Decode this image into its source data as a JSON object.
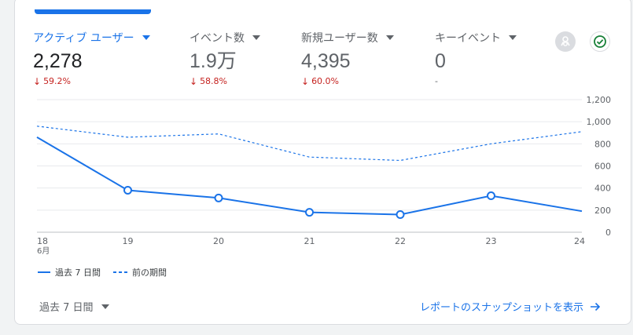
{
  "metrics": [
    {
      "label": "アクティブ ユーザー",
      "value": "2,278",
      "delta": "59.2%",
      "direction": "down"
    },
    {
      "label": "イベント数",
      "value": "1.9万",
      "delta": "58.8%",
      "direction": "down"
    },
    {
      "label": "新規ユーザー数",
      "value": "4,395",
      "delta": "60.0%",
      "direction": "down"
    },
    {
      "label": "キーイベント",
      "value": "0",
      "delta": "-",
      "direction": "none"
    }
  ],
  "icons": {
    "insights": "insights-icon",
    "check": "check-circle-icon"
  },
  "colors": {
    "accent": "#1a73e8",
    "negative": "#c5221f"
  },
  "chart_data": {
    "type": "line",
    "x": [
      "18",
      "19",
      "20",
      "21",
      "22",
      "23",
      "24"
    ],
    "x_sublabel": "6月",
    "yticks": [
      "0",
      "200",
      "400",
      "600",
      "800",
      "1,000",
      "1,200"
    ],
    "ylim": [
      0,
      1200
    ],
    "series": [
      {
        "name": "過去 7 日間",
        "style": "solid",
        "values": [
          860,
          380,
          310,
          180,
          160,
          330,
          190
        ]
      },
      {
        "name": "前の期間",
        "style": "dashed",
        "values": [
          960,
          860,
          890,
          680,
          650,
          800,
          910
        ]
      }
    ],
    "grid": true,
    "legend_position": "bottom-left"
  },
  "footer": {
    "range_label": "過去 7 日間",
    "link_label": "レポートのスナップショットを表示"
  }
}
